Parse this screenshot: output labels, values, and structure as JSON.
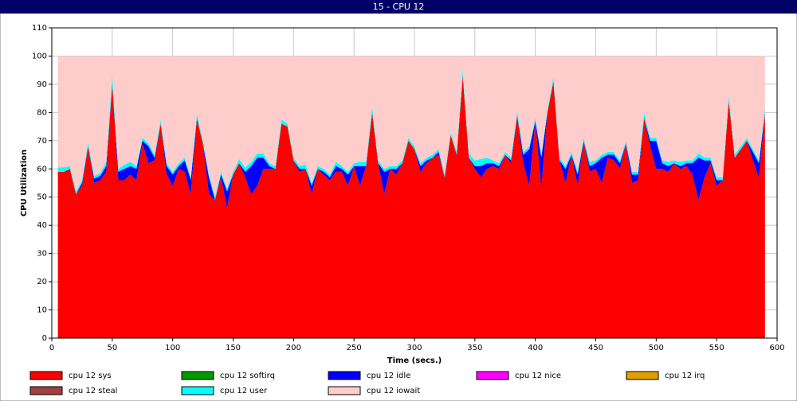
{
  "chart_data": {
    "type": "stacked_area",
    "title": "15 - CPU 12",
    "xlabel": "Time (secs.)",
    "ylabel": "CPU Utilization",
    "x": [
      5,
      10,
      15,
      20,
      25,
      30,
      35,
      40,
      45,
      50,
      55,
      60,
      65,
      70,
      75,
      80,
      85,
      90,
      95,
      100,
      105,
      110,
      115,
      120,
      125,
      130,
      135,
      140,
      145,
      150,
      155,
      160,
      165,
      170,
      175,
      180,
      185,
      190,
      195,
      200,
      205,
      210,
      215,
      220,
      225,
      230,
      235,
      240,
      245,
      250,
      255,
      260,
      265,
      270,
      275,
      280,
      285,
      290,
      295,
      300,
      305,
      310,
      315,
      320,
      325,
      330,
      335,
      340,
      345,
      350,
      355,
      360,
      365,
      370,
      375,
      380,
      385,
      390,
      395,
      400,
      405,
      410,
      415,
      420,
      425,
      430,
      435,
      440,
      445,
      450,
      455,
      460,
      465,
      470,
      475,
      480,
      485,
      490,
      495,
      500,
      505,
      510,
      515,
      520,
      525,
      530,
      535,
      540,
      545,
      550,
      555,
      560,
      565,
      570,
      575,
      580,
      585,
      590
    ],
    "series": [
      {
        "name": "cpu 12 sys",
        "color": "#ff0000",
        "values": [
          59,
          59,
          60,
          51,
          54,
          68,
          55,
          56,
          59,
          90,
          56,
          56,
          58,
          56,
          69,
          62,
          63,
          76,
          58,
          54,
          60,
          59,
          51,
          78,
          69,
          51,
          49,
          57,
          46,
          58,
          62,
          57,
          51,
          54,
          60,
          60,
          60,
          76,
          75,
          63,
          59,
          60,
          51,
          60,
          58,
          56,
          59,
          59,
          54,
          61,
          54,
          61,
          80,
          62,
          51,
          60,
          58,
          62,
          70,
          67,
          59,
          62,
          64,
          65,
          57,
          72,
          65,
          93,
          64,
          60,
          57,
          60,
          61,
          60,
          65,
          62,
          79,
          62,
          54,
          77,
          53,
          80,
          91,
          63,
          55,
          65,
          54,
          70,
          59,
          60,
          55,
          64,
          63,
          60,
          69,
          55,
          56,
          78,
          68,
          60,
          60,
          59,
          62,
          60,
          61,
          58,
          49,
          57,
          62,
          54,
          56,
          84,
          64,
          67,
          70,
          63,
          57,
          80
        ]
      },
      {
        "name": "cpu 12 softirq",
        "color": "#009900",
        "values": [
          0,
          0,
          0,
          0,
          0,
          0,
          0,
          0,
          0,
          0,
          0,
          0,
          0,
          0,
          0,
          0,
          0,
          0,
          0,
          0,
          0,
          0,
          0,
          0,
          0,
          0,
          0,
          0,
          0,
          0,
          0,
          0,
          0,
          0,
          0,
          0,
          0,
          0,
          0,
          0,
          0,
          0,
          0,
          0,
          0,
          0,
          0,
          0,
          0,
          0,
          0,
          0,
          0,
          0,
          0,
          0,
          0,
          0,
          0,
          0,
          0,
          0,
          0,
          0,
          0,
          0,
          0,
          0,
          0,
          0,
          0,
          0,
          0,
          0,
          0,
          0,
          0,
          0,
          0,
          0,
          0,
          0,
          0,
          0,
          0,
          0,
          0,
          0,
          0,
          0,
          0,
          0,
          0,
          0,
          0,
          0,
          0,
          0,
          0,
          0,
          0,
          0,
          0,
          0,
          0,
          0,
          0,
          0,
          0,
          0,
          0,
          0,
          0,
          0,
          0,
          0,
          0,
          0
        ]
      },
      {
        "name": "cpu 12 idle",
        "color": "#0000ff",
        "values": [
          0,
          0,
          0,
          0,
          1,
          0,
          1.5,
          1.5,
          2,
          0,
          3,
          4,
          3,
          4,
          1,
          6,
          1,
          0,
          3,
          4,
          1,
          4,
          5,
          0,
          0,
          6,
          0,
          1,
          6,
          0,
          0,
          2,
          10,
          10,
          4,
          1,
          0,
          0,
          0,
          0,
          1,
          0,
          3,
          0,
          1,
          1,
          2,
          1,
          4,
          0,
          7,
          0,
          0,
          0,
          8,
          0,
          2,
          0,
          0,
          0,
          2,
          1,
          0,
          1,
          0,
          0,
          0,
          0,
          0,
          1,
          4,
          2,
          1,
          1,
          0,
          1,
          0,
          3,
          13,
          0,
          11,
          0,
          0,
          0,
          5,
          0,
          4,
          0,
          2,
          2,
          9,
          1,
          2,
          2,
          0,
          3,
          2,
          0,
          2,
          10,
          2,
          2,
          0,
          1,
          1,
          4,
          15,
          6,
          1,
          2,
          0,
          0,
          0,
          0,
          0,
          3,
          5,
          0
        ]
      },
      {
        "name": "cpu 12 nice",
        "color": "#ff00ff",
        "values": [
          0,
          0,
          0,
          0,
          0,
          0,
          0,
          0,
          0,
          0,
          0,
          0,
          0,
          0,
          0,
          0,
          0,
          0,
          0,
          0,
          0,
          0,
          0,
          0,
          0,
          0,
          0,
          0,
          0,
          0,
          0,
          0,
          0,
          0,
          0,
          0,
          0,
          0,
          0,
          0,
          0,
          0,
          0,
          0,
          0,
          0,
          0,
          0,
          0,
          0,
          0,
          0,
          0,
          0,
          0,
          0,
          0,
          0,
          0,
          0,
          0,
          0,
          0,
          0,
          0,
          0,
          0,
          0,
          0,
          0,
          0,
          0,
          0,
          0,
          0,
          0,
          0,
          0,
          0,
          0,
          0,
          0,
          0,
          0,
          0,
          0,
          0,
          0,
          0,
          0,
          0,
          0,
          0,
          0,
          0,
          0,
          0,
          0,
          0,
          0,
          0,
          0,
          0,
          0,
          0,
          0,
          0,
          0,
          0,
          0,
          0,
          0,
          0,
          0,
          0,
          0,
          0,
          0
        ]
      },
      {
        "name": "cpu 12 irq",
        "color": "#e0a000",
        "values": [
          0,
          0,
          0,
          0,
          0,
          0,
          0,
          0,
          0,
          0,
          0,
          0,
          0,
          0,
          0,
          0,
          0,
          0,
          0,
          0,
          0,
          0,
          0,
          0,
          0,
          0,
          0,
          0,
          0,
          0,
          0,
          0,
          0,
          0,
          0,
          0,
          0,
          0,
          0,
          0,
          0,
          0,
          0,
          0,
          0,
          0,
          0,
          0,
          0,
          0,
          0,
          0,
          0,
          0,
          0,
          0,
          0,
          0,
          0,
          0,
          0,
          0,
          0,
          0,
          0,
          0,
          0,
          0,
          0,
          0,
          0,
          0,
          0,
          0,
          0,
          0,
          0,
          0,
          0,
          0,
          0,
          0,
          0,
          0,
          0,
          0,
          0,
          0,
          0,
          0,
          0,
          0,
          0,
          0,
          0,
          0,
          0,
          0,
          0,
          0,
          0,
          0,
          0,
          0,
          0,
          0,
          0,
          0,
          0,
          0,
          0,
          0,
          0,
          0,
          0,
          0,
          0,
          0
        ]
      },
      {
        "name": "cpu 12 steal",
        "color": "#a04040",
        "values": [
          0,
          0,
          0,
          0,
          0,
          0,
          0,
          0,
          0,
          0,
          0,
          0,
          0,
          0,
          0,
          0,
          0,
          0,
          0,
          0,
          0,
          0,
          0,
          0,
          0,
          0,
          0,
          0,
          0,
          0,
          0,
          0,
          0,
          0,
          0,
          0,
          0,
          0,
          0,
          0,
          0,
          0,
          0,
          0,
          0,
          0,
          0,
          0,
          0,
          0,
          0,
          0,
          0,
          0,
          0,
          0,
          0,
          0,
          0,
          0,
          0,
          0,
          0,
          0,
          0,
          0,
          0,
          0,
          0,
          0,
          0,
          0,
          0,
          0,
          0,
          0,
          0,
          0,
          0,
          0,
          0,
          0,
          0,
          0,
          0,
          0,
          0,
          0,
          0,
          0,
          0,
          0,
          0,
          0,
          0,
          0,
          0,
          0,
          0,
          0,
          0,
          0,
          0,
          0,
          0,
          0,
          0,
          0,
          0,
          0,
          0,
          0,
          0,
          0,
          0,
          0,
          0,
          0
        ]
      },
      {
        "name": "cpu 12 user",
        "color": "#00ffff",
        "values": [
          1.5,
          1.5,
          1,
          1,
          1,
          1.5,
          1,
          1,
          1.5,
          3,
          1,
          1.5,
          1.5,
          1,
          1,
          1,
          1,
          1.5,
          1,
          1,
          1,
          1,
          1,
          1.5,
          1,
          1,
          1,
          1,
          1,
          1,
          1.5,
          1.5,
          1.5,
          1.5,
          1.5,
          1,
          1,
          1.5,
          1,
          1,
          1,
          1.5,
          1,
          1,
          1,
          1,
          1.5,
          1,
          1,
          1,
          1.5,
          1.5,
          2,
          1,
          1,
          1,
          1,
          1,
          1,
          1,
          1,
          1,
          1,
          1,
          1,
          1,
          1,
          2.5,
          1.5,
          2,
          2.5,
          2,
          1,
          1,
          1,
          1,
          1.5,
          1,
          1,
          1,
          1,
          1,
          1.5,
          1,
          1,
          1,
          1,
          1,
          1.5,
          1,
          1,
          1,
          1,
          1,
          1,
          1,
          1,
          2,
          1,
          1,
          1,
          1.5,
          1,
          1.5,
          1,
          1,
          1.5,
          1,
          1,
          1,
          1,
          2,
          1,
          1,
          1,
          1,
          1,
          1.5
        ]
      },
      {
        "name": "cpu 12 iowait",
        "color": "#ffcccc",
        "values": [
          39.5,
          39.5,
          39,
          48,
          44,
          30.5,
          42.5,
          41.5,
          37.5,
          7,
          40,
          38.5,
          37.5,
          39,
          29,
          31,
          35,
          22.5,
          38,
          41,
          38,
          36,
          43,
          20.5,
          30,
          42,
          50,
          41,
          47,
          41,
          36.5,
          39.5,
          37.5,
          34.5,
          34.5,
          38,
          39,
          22.5,
          24,
          36,
          39,
          38.5,
          45,
          39,
          40,
          42,
          37.5,
          39,
          41,
          38,
          37.5,
          37.5,
          18,
          37,
          40,
          39,
          39,
          37,
          29,
          32,
          38,
          36,
          35,
          33,
          42,
          27,
          34,
          4.5,
          34.5,
          37,
          36.5,
          36,
          37,
          38,
          34,
          36,
          19.5,
          34,
          32,
          22,
          35,
          19,
          7.5,
          36,
          39,
          34,
          41,
          29,
          37.5,
          37,
          35,
          34,
          34,
          37,
          30,
          41,
          41,
          20,
          29,
          29,
          37,
          37.5,
          37,
          37.5,
          37,
          37,
          34.5,
          36,
          36,
          43,
          43,
          14,
          35,
          32,
          29,
          33,
          37,
          18.5
        ]
      }
    ],
    "xlim": [
      0,
      600
    ],
    "xticks": [
      0,
      50,
      100,
      150,
      200,
      250,
      300,
      350,
      400,
      450,
      500,
      550,
      600
    ],
    "ylim": [
      0,
      110
    ],
    "yticks": [
      0,
      10,
      20,
      30,
      40,
      50,
      60,
      70,
      80,
      90,
      100,
      110
    ],
    "grid": true
  }
}
